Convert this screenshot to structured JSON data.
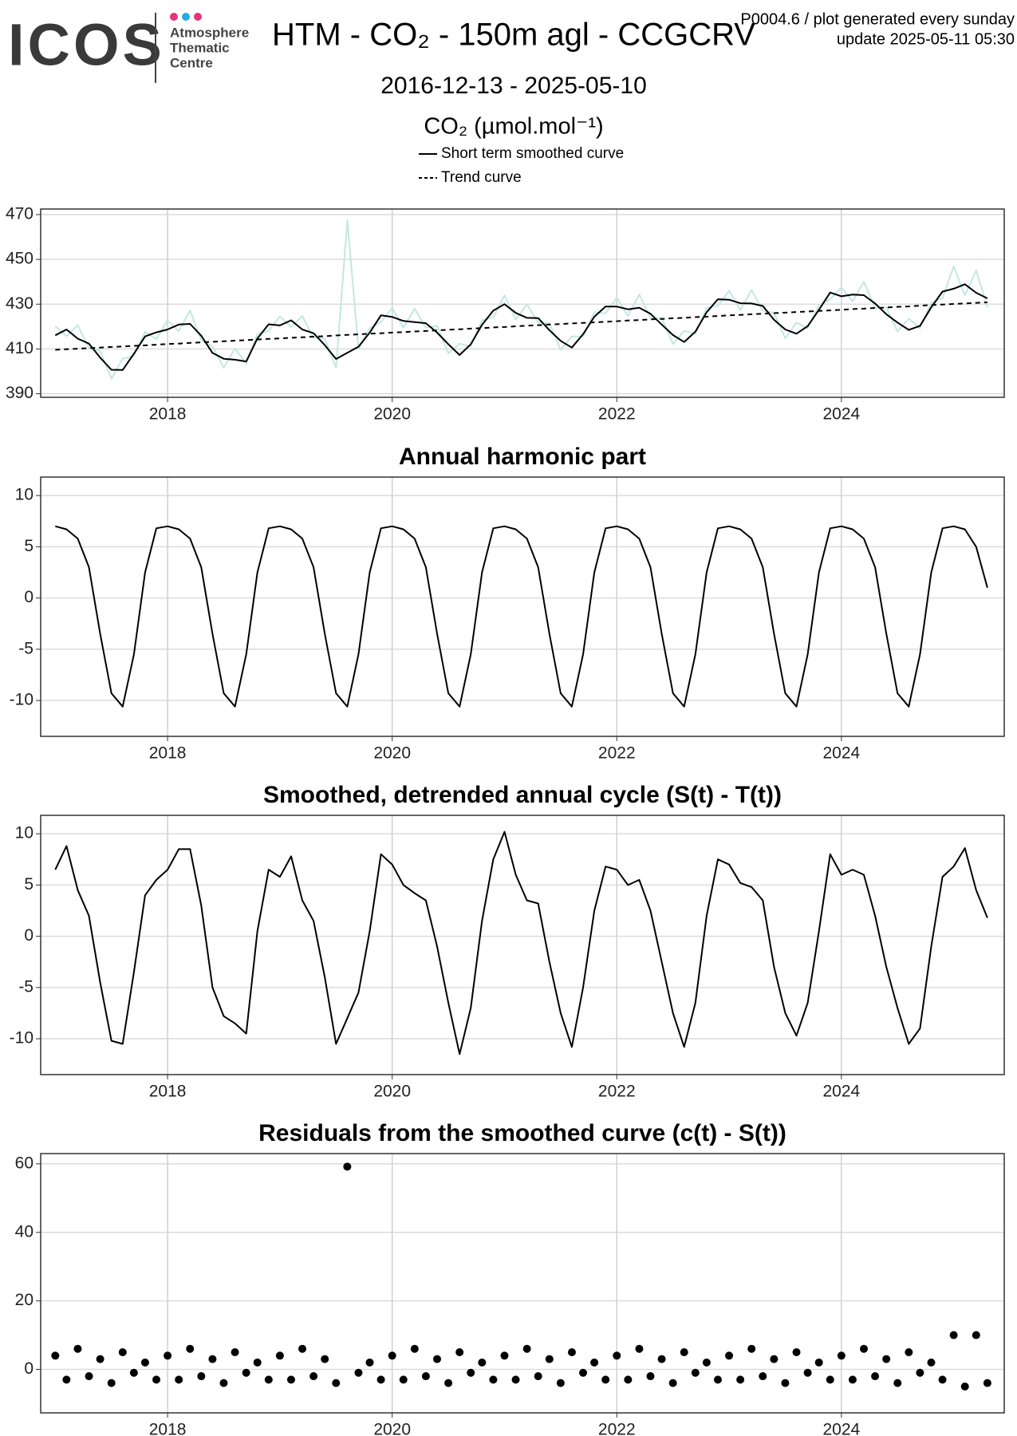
{
  "header": {
    "logo": "ICOS",
    "org": [
      "Atmosphere",
      "Thematic",
      "Centre"
    ],
    "title": "HTM - CO₂ - 150m agl - CCGCRV",
    "note": "P0004.6 / plot generated every sunday",
    "update": "update  2025-05-11 05:30",
    "subtitle": "2016-12-13 - 2025-05-10"
  },
  "chart_data": [
    {
      "type": "line",
      "ylabel": "CO₂ (µmol.mol⁻¹)",
      "xlim": [
        2016.87,
        2025.45
      ],
      "xticks": [
        2018,
        2020,
        2022,
        2024
      ],
      "ylim": [
        388.4,
        472.5
      ],
      "yticks": [
        390,
        410,
        430,
        450,
        470
      ],
      "grid": true,
      "x": [
        2017,
        2017.1,
        2017.2,
        2017.3,
        2017.4,
        2017.5,
        2017.6,
        2017.7,
        2017.8,
        2017.9,
        2018,
        2018.1,
        2018.2,
        2018.3,
        2018.4,
        2018.5,
        2018.6,
        2018.7,
        2018.8,
        2018.9,
        2019,
        2019.1,
        2019.2,
        2019.3,
        2019.4,
        2019.5,
        2019.6,
        2019.7,
        2019.8,
        2019.9,
        2020,
        2020.1,
        2020.2,
        2020.3,
        2020.4,
        2020.5,
        2020.6,
        2020.7,
        2020.8,
        2020.9,
        2021,
        2021.1,
        2021.2,
        2021.3,
        2021.4,
        2021.5,
        2021.6,
        2021.7,
        2021.8,
        2021.9,
        2022,
        2022.1,
        2022.2,
        2022.3,
        2022.4,
        2022.5,
        2022.6,
        2022.7,
        2022.8,
        2022.9,
        2023,
        2023.1,
        2023.2,
        2023.3,
        2023.4,
        2023.5,
        2023.6,
        2023.7,
        2023.8,
        2023.9,
        2024,
        2024.1,
        2024.2,
        2024.3,
        2024.4,
        2024.5,
        2024.6,
        2024.7,
        2024.8,
        2024.9,
        2025,
        2025.1,
        2025.2,
        2025.3
      ],
      "series": [
        {
          "color": "#c2e8e1",
          "style": "solid",
          "width": 2,
          "values": [
            420.1,
            415.7,
            420.6,
            410.4,
            409.1,
            396.7,
            405.6,
            406.9,
            417.6,
            414.4,
            422.7,
            417.9,
            427.2,
            413.9,
            411.2,
            401.6,
            410.2,
            403.4,
            416.7,
            418.0,
            424.5,
            419.8,
            424.7,
            415.0,
            414.7,
            401.5,
            467.5,
            410.0,
            419.3,
            422.0,
            428.3,
            419.5,
            428.0,
            419.5,
            420.3,
            408.1,
            412.3,
            411.1,
            422.8,
            424.1,
            434.0,
            423.1,
            429.9,
            421.8,
            421.4,
            409.6,
            415.6,
            415.6,
            426.4,
            425.9,
            432.9,
            424.7,
            434.4,
            423.7,
            423.9,
            412.2,
            418.1,
            416.7,
            428.4,
            429.2,
            436.0,
            427.4,
            436.3,
            427.2,
            426.0,
            414.7,
            421.8,
            419.2,
            429.5,
            432.2,
            437.5,
            431.3,
            440.0,
            428.3,
            428.5,
            417.8,
            423.5,
            419.3,
            430.6,
            432.6,
            446.9,
            433.9,
            445.1,
            428.6
          ]
        },
        {
          "name": "Short term smoothed curve",
          "color": "#000000",
          "style": "solid",
          "width": 2,
          "values": [
            416.1,
            418.7,
            414.6,
            412.4,
            406.1,
            400.7,
            400.6,
            407.9,
            415.6,
            417.4,
            418.7,
            420.9,
            421.2,
            415.9,
            408.2,
            405.6,
            405.2,
            404.4,
            414.7,
            421.0,
            420.5,
            422.8,
            418.7,
            417.0,
            411.7,
            405.5,
            408.3,
            411.0,
            417.3,
            425.0,
            424.3,
            422.5,
            422.0,
            421.5,
            417.3,
            412.1,
            407.3,
            412.1,
            420.8,
            427.1,
            430.0,
            426.1,
            423.9,
            423.8,
            418.4,
            413.6,
            410.6,
            416.6,
            424.4,
            428.9,
            428.9,
            427.7,
            428.4,
            425.7,
            420.9,
            416.2,
            413.1,
            417.7,
            426.4,
            432.2,
            432.0,
            430.4,
            430.3,
            429.2,
            423.0,
            418.7,
            416.8,
            420.2,
            427.5,
            435.2,
            433.5,
            434.3,
            434.0,
            430.3,
            425.5,
            421.8,
            418.5,
            420.3,
            428.6,
            435.6,
            436.9,
            438.9,
            435.1,
            432.6
          ]
        },
        {
          "name": "Trend curve",
          "color": "#000000",
          "style": "dashed",
          "width": 2,
          "values": [
            409.6,
            409.9,
            410.1,
            410.4,
            410.6,
            410.9,
            411.1,
            411.4,
            411.6,
            411.9,
            412.2,
            412.4,
            412.7,
            412.9,
            413.2,
            413.4,
            413.7,
            413.9,
            414.2,
            414.5,
            414.7,
            415.0,
            415.2,
            415.5,
            415.7,
            416.0,
            416.3,
            416.5,
            416.8,
            417.0,
            417.3,
            417.5,
            417.8,
            418.0,
            418.3,
            418.6,
            418.8,
            419.1,
            419.3,
            419.6,
            419.8,
            420.1,
            420.4,
            420.6,
            420.9,
            421.1,
            421.4,
            421.6,
            421.9,
            422.1,
            422.4,
            422.7,
            422.9,
            423.2,
            423.4,
            423.7,
            423.9,
            424.2,
            424.4,
            424.7,
            425.0,
            425.2,
            425.5,
            425.7,
            426.0,
            426.2,
            426.5,
            426.7,
            427.0,
            427.2,
            427.5,
            427.8,
            428.0,
            428.3,
            428.5,
            428.8,
            429.0,
            429.3,
            429.6,
            429.8,
            430.1,
            430.3,
            430.6,
            430.8
          ]
        }
      ]
    },
    {
      "type": "line",
      "title": "Annual harmonic part",
      "xlim": [
        2016.87,
        2025.45
      ],
      "xticks": [
        2018,
        2020,
        2022,
        2024
      ],
      "ylim": [
        -13.5,
        11.8
      ],
      "yticks": [
        -10,
        -5,
        0,
        5,
        10
      ],
      "grid": true,
      "x": [
        2017,
        2017.1,
        2017.2,
        2017.3,
        2017.4,
        2017.5,
        2017.6,
        2017.7,
        2017.8,
        2017.9,
        2018,
        2018.1,
        2018.2,
        2018.3,
        2018.4,
        2018.5,
        2018.6,
        2018.7,
        2018.8,
        2018.9,
        2019,
        2019.1,
        2019.2,
        2019.3,
        2019.4,
        2019.5,
        2019.6,
        2019.7,
        2019.8,
        2019.9,
        2020,
        2020.1,
        2020.2,
        2020.3,
        2020.4,
        2020.5,
        2020.6,
        2020.7,
        2020.8,
        2020.9,
        2021,
        2021.1,
        2021.2,
        2021.3,
        2021.4,
        2021.5,
        2021.6,
        2021.7,
        2021.8,
        2021.9,
        2022,
        2022.1,
        2022.2,
        2022.3,
        2022.4,
        2022.5,
        2022.6,
        2022.7,
        2022.8,
        2022.9,
        2023,
        2023.1,
        2023.2,
        2023.3,
        2023.4,
        2023.5,
        2023.6,
        2023.7,
        2023.8,
        2023.9,
        2024,
        2024.1,
        2024.2,
        2024.3,
        2024.4,
        2024.5,
        2024.6,
        2024.7,
        2024.8,
        2024.9,
        2025,
        2025.1,
        2025.2,
        2025.3
      ],
      "series": [
        {
          "color": "#000000",
          "style": "solid",
          "width": 2,
          "values": [
            7.0,
            6.7,
            5.8,
            3.0,
            -3.5,
            -9.3,
            -10.6,
            -5.5,
            2.5,
            6.8,
            7.0,
            6.7,
            5.8,
            3.0,
            -3.5,
            -9.3,
            -10.6,
            -5.5,
            2.5,
            6.8,
            7.0,
            6.7,
            5.8,
            3.0,
            -3.5,
            -9.3,
            -10.6,
            -5.5,
            2.5,
            6.8,
            7.0,
            6.7,
            5.8,
            3.0,
            -3.5,
            -9.3,
            -10.6,
            -5.5,
            2.5,
            6.8,
            7.0,
            6.7,
            5.8,
            3.0,
            -3.5,
            -9.3,
            -10.6,
            -5.5,
            2.5,
            6.8,
            7.0,
            6.7,
            5.8,
            3.0,
            -3.5,
            -9.3,
            -10.6,
            -5.5,
            2.5,
            6.8,
            7.0,
            6.7,
            5.8,
            3.0,
            -3.5,
            -9.3,
            -10.6,
            -5.5,
            2.5,
            6.8,
            7.0,
            6.7,
            5.8,
            3.0,
            -3.5,
            -9.3,
            -10.6,
            -5.5,
            2.5,
            6.8,
            7.0,
            6.7,
            5.0,
            1.0
          ]
        }
      ]
    },
    {
      "type": "line",
      "title": "Smoothed, detrended annual cycle (S(t) - T(t))",
      "xlim": [
        2016.87,
        2025.45
      ],
      "xticks": [
        2018,
        2020,
        2022,
        2024
      ],
      "ylim": [
        -13.5,
        11.8
      ],
      "yticks": [
        -10,
        -5,
        0,
        5,
        10
      ],
      "grid": true,
      "x": [
        2017,
        2017.1,
        2017.2,
        2017.3,
        2017.4,
        2017.5,
        2017.6,
        2017.7,
        2017.8,
        2017.9,
        2018,
        2018.1,
        2018.2,
        2018.3,
        2018.4,
        2018.5,
        2018.6,
        2018.7,
        2018.8,
        2018.9,
        2019,
        2019.1,
        2019.2,
        2019.3,
        2019.4,
        2019.5,
        2019.6,
        2019.7,
        2019.8,
        2019.9,
        2020,
        2020.1,
        2020.2,
        2020.3,
        2020.4,
        2020.5,
        2020.6,
        2020.7,
        2020.8,
        2020.9,
        2021,
        2021.1,
        2021.2,
        2021.3,
        2021.4,
        2021.5,
        2021.6,
        2021.7,
        2021.8,
        2021.9,
        2022,
        2022.1,
        2022.2,
        2022.3,
        2022.4,
        2022.5,
        2022.6,
        2022.7,
        2022.8,
        2022.9,
        2023,
        2023.1,
        2023.2,
        2023.3,
        2023.4,
        2023.5,
        2023.6,
        2023.7,
        2023.8,
        2023.9,
        2024,
        2024.1,
        2024.2,
        2024.3,
        2024.4,
        2024.5,
        2024.6,
        2024.7,
        2024.8,
        2024.9,
        2025,
        2025.1,
        2025.2,
        2025.3
      ],
      "series": [
        {
          "color": "#000000",
          "style": "solid",
          "width": 2,
          "values": [
            6.5,
            8.8,
            4.5,
            2.0,
            -4.5,
            -10.2,
            -10.5,
            -3.5,
            4.0,
            5.5,
            6.5,
            8.5,
            8.5,
            3.0,
            -5.0,
            -7.8,
            -8.5,
            -9.5,
            0.5,
            6.5,
            5.8,
            7.8,
            3.5,
            1.5,
            -4.0,
            -10.5,
            -8.0,
            -5.5,
            0.5,
            8.0,
            7.0,
            5.0,
            4.2,
            3.5,
            -1.0,
            -6.5,
            -11.5,
            -7.0,
            1.5,
            7.5,
            10.2,
            6.0,
            3.5,
            3.2,
            -2.5,
            -7.5,
            -10.8,
            -5.0,
            2.5,
            6.8,
            6.5,
            5.0,
            5.5,
            2.5,
            -2.5,
            -7.5,
            -10.8,
            -6.5,
            2.0,
            7.5,
            7.0,
            5.2,
            4.8,
            3.5,
            -3.0,
            -7.5,
            -9.7,
            -6.5,
            0.5,
            8.0,
            6.0,
            6.5,
            6.0,
            2.0,
            -3.0,
            -7.0,
            -10.5,
            -9.0,
            -1.0,
            5.8,
            6.8,
            8.6,
            4.5,
            1.8
          ]
        }
      ]
    },
    {
      "type": "scatter",
      "title": "Residuals from the smoothed curve (c(t) - S(t))",
      "xlim": [
        2016.87,
        2025.45
      ],
      "xticks": [
        2018,
        2020,
        2022,
        2024
      ],
      "ylim": [
        -12.7,
        63
      ],
      "yticks": [
        0,
        20,
        40,
        60
      ],
      "grid": true,
      "color": "#000000",
      "x": [
        2017,
        2017.1,
        2017.2,
        2017.3,
        2017.4,
        2017.5,
        2017.6,
        2017.7,
        2017.8,
        2017.9,
        2018,
        2018.1,
        2018.2,
        2018.3,
        2018.4,
        2018.5,
        2018.6,
        2018.7,
        2018.8,
        2018.9,
        2019,
        2019.1,
        2019.2,
        2019.3,
        2019.4,
        2019.5,
        2019.6,
        2019.7,
        2019.8,
        2019.9,
        2020,
        2020.1,
        2020.2,
        2020.3,
        2020.4,
        2020.5,
        2020.6,
        2020.7,
        2020.8,
        2020.9,
        2021,
        2021.1,
        2021.2,
        2021.3,
        2021.4,
        2021.5,
        2021.6,
        2021.7,
        2021.8,
        2021.9,
        2022,
        2022.1,
        2022.2,
        2022.3,
        2022.4,
        2022.5,
        2022.6,
        2022.7,
        2022.8,
        2022.9,
        2023,
        2023.1,
        2023.2,
        2023.3,
        2023.4,
        2023.5,
        2023.6,
        2023.7,
        2023.8,
        2023.9,
        2024,
        2024.1,
        2024.2,
        2024.3,
        2024.4,
        2024.5,
        2024.6,
        2024.7,
        2024.8,
        2024.9,
        2025,
        2025.1,
        2025.2,
        2025.3
      ],
      "values": [
        4,
        -3,
        6,
        -2,
        3,
        -4,
        5,
        -1,
        2,
        -3,
        4,
        -3,
        6,
        -2,
        3,
        -4,
        5,
        -1,
        2,
        -3,
        4,
        -3,
        6,
        -2,
        3,
        -4,
        59.2,
        -1,
        2,
        -3,
        4,
        -3,
        6,
        -2,
        3,
        -4,
        5,
        -1,
        2,
        -3,
        4,
        -3,
        6,
        -2,
        3,
        -4,
        5,
        -1,
        2,
        -3,
        4,
        -3,
        6,
        -2,
        3,
        -4,
        5,
        -1,
        2,
        -3,
        4,
        -3,
        6,
        -2,
        3,
        -4,
        5,
        -1,
        2,
        -3,
        4,
        -3,
        6,
        -2,
        3,
        -4,
        5,
        -1,
        2,
        -3,
        10,
        -5,
        10,
        -4
      ]
    }
  ]
}
